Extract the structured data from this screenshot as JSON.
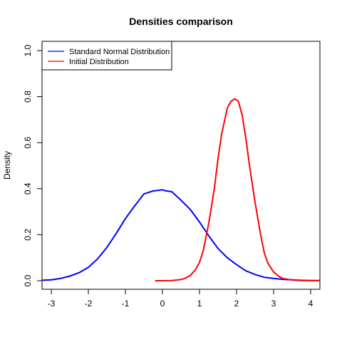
{
  "chart_data": {
    "type": "line",
    "title": "Densities comparison",
    "xlabel": "",
    "ylabel": "Density",
    "xlim": [
      -3.25,
      4.25
    ],
    "ylim": [
      0,
      1.0
    ],
    "xticks": [
      -3,
      -2,
      -1,
      0,
      1,
      2,
      3,
      4
    ],
    "yticks": [
      0.0,
      0.2,
      0.4,
      0.6,
      0.8,
      1.0
    ],
    "ytick_labels": [
      "0.0",
      "0.2",
      "0.4",
      "0.6",
      "0.8",
      "1.0"
    ],
    "grid": false,
    "legend_position": "top-left",
    "series": [
      {
        "name": "Standard Normal Distribution",
        "color": "#0000ff",
        "x": [
          -3.25,
          -3.0,
          -2.75,
          -2.5,
          -2.25,
          -2.0,
          -1.75,
          -1.5,
          -1.25,
          -1.0,
          -0.75,
          -0.5,
          -0.25,
          0.0,
          0.1,
          0.25,
          0.5,
          0.75,
          1.0,
          1.25,
          1.5,
          1.75,
          2.0,
          2.25,
          2.5,
          2.75,
          3.0,
          3.25,
          3.5,
          3.75,
          4.0,
          4.25
        ],
        "y": [
          0.002,
          0.004,
          0.01,
          0.02,
          0.035,
          0.058,
          0.095,
          0.145,
          0.205,
          0.27,
          0.325,
          0.377,
          0.39,
          0.395,
          0.39,
          0.387,
          0.35,
          0.31,
          0.255,
          0.195,
          0.14,
          0.1,
          0.07,
          0.043,
          0.027,
          0.015,
          0.01,
          0.006,
          0.004,
          0.002,
          0.001,
          0.0005
        ]
      },
      {
        "name": "Initial Distribution",
        "color": "#ff0000",
        "x": [
          -0.2,
          0.0,
          0.25,
          0.5,
          0.6,
          0.75,
          0.9,
          1.0,
          1.1,
          1.25,
          1.4,
          1.5,
          1.6,
          1.75,
          1.85,
          1.95,
          2.0,
          2.05,
          2.15,
          2.25,
          2.35,
          2.5,
          2.65,
          2.75,
          2.85,
          3.0,
          3.15,
          3.25,
          3.5,
          3.75,
          4.0,
          4.25
        ],
        "y": [
          0.0,
          0.0,
          0.001,
          0.005,
          0.01,
          0.022,
          0.05,
          0.08,
          0.13,
          0.25,
          0.4,
          0.53,
          0.64,
          0.75,
          0.78,
          0.79,
          0.785,
          0.78,
          0.72,
          0.62,
          0.5,
          0.34,
          0.2,
          0.12,
          0.075,
          0.038,
          0.018,
          0.01,
          0.003,
          0.001,
          0.0003,
          0.0001
        ]
      }
    ]
  }
}
